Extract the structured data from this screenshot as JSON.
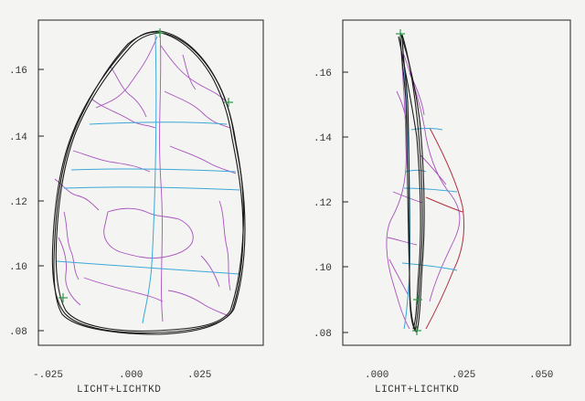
{
  "left_plot": {
    "xlabel": "LICHT+LICHTKD",
    "y_ticks": [
      ".16",
      ".14",
      ".12",
      ".10",
      ".08"
    ],
    "x_ticks": [
      "-.025",
      ".000",
      ".025"
    ]
  },
  "right_plot": {
    "xlabel": "LICHT+LICHTKD",
    "y_ticks": [
      ".16",
      ".14",
      ".12",
      ".10",
      ".08"
    ],
    "x_ticks": [
      ".000",
      ".025",
      ".050"
    ]
  },
  "colors": {
    "outline": "#1a1a1a",
    "contours": "#a040b8",
    "sections": "#3aa8d8",
    "section_right": "#b03040",
    "frame": "#222222"
  }
}
